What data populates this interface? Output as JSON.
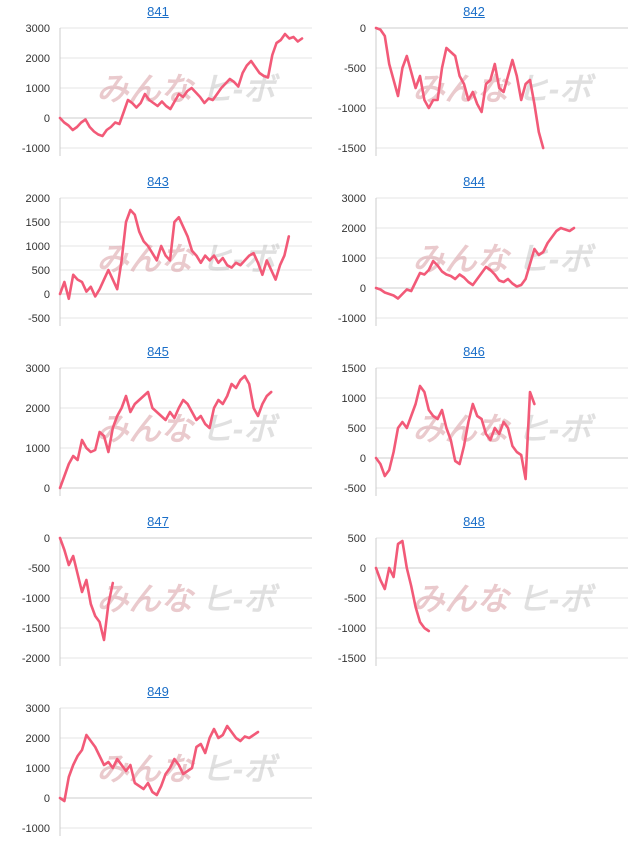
{
  "watermark": {
    "text_left": "みんな",
    "text_right": "ヒ-ボ"
  },
  "colors": {
    "line": "#f25a78",
    "link": "#1a6ec8"
  },
  "chart_data": [
    {
      "type": "line",
      "title": "841",
      "yticks": [
        3000,
        2000,
        1000,
        0,
        -1000
      ],
      "ylim": [
        -1000,
        3000
      ],
      "values": [
        0,
        -150,
        -250,
        -400,
        -300,
        -150,
        -50,
        -300,
        -450,
        -550,
        -600,
        -400,
        -300,
        -150,
        -200,
        200,
        600,
        500,
        350,
        500,
        800,
        600,
        500,
        400,
        550,
        400,
        300,
        550,
        800,
        700,
        900,
        1000,
        850,
        700,
        500,
        650,
        600,
        800,
        1000,
        1150,
        1300,
        1200,
        1050,
        1500,
        1750,
        1900,
        1700,
        1500,
        1400,
        1350,
        2100,
        2500,
        2600,
        2800,
        2650,
        2700,
        2550,
        2650
      ]
    },
    {
      "type": "line",
      "title": "842",
      "yticks": [
        0,
        -500,
        -1000,
        -1500
      ],
      "ylim": [
        -1500,
        0
      ],
      "values": [
        0,
        -20,
        -100,
        -450,
        -650,
        -850,
        -500,
        -350,
        -550,
        -750,
        -600,
        -900,
        -1000,
        -900,
        -900,
        -500,
        -250,
        -300,
        -350,
        -600,
        -700,
        -900,
        -800,
        -950,
        -1050,
        -700,
        -650,
        -450,
        -750,
        -800,
        -600,
        -400,
        -600,
        -900,
        -700,
        -650,
        -950,
        -1300,
        -1500
      ]
    },
    {
      "type": "line",
      "title": "843",
      "yticks": [
        2000,
        1500,
        1000,
        500,
        0,
        -500
      ],
      "ylim": [
        -500,
        2000
      ],
      "values": [
        0,
        250,
        -100,
        400,
        300,
        250,
        50,
        150,
        -50,
        100,
        300,
        500,
        300,
        100,
        700,
        1500,
        1750,
        1650,
        1300,
        1100,
        1000,
        850,
        700,
        1000,
        800,
        700,
        1500,
        1600,
        1400,
        1200,
        900,
        800,
        650,
        800,
        700,
        800,
        650,
        750,
        600,
        550,
        650,
        600,
        700,
        800,
        850,
        650,
        400,
        700,
        500,
        300,
        600,
        800,
        1200
      ]
    },
    {
      "type": "line",
      "title": "844",
      "yticks": [
        3000,
        2000,
        1000,
        0,
        -1000
      ],
      "ylim": [
        -1000,
        3000
      ],
      "values": [
        0,
        -50,
        -150,
        -200,
        -250,
        -350,
        -200,
        -50,
        -100,
        200,
        500,
        450,
        600,
        900,
        750,
        550,
        450,
        400,
        300,
        450,
        350,
        200,
        100,
        300,
        500,
        700,
        600,
        450,
        250,
        200,
        300,
        150,
        50,
        100,
        300,
        800,
        1300,
        1100,
        1200,
        1500,
        1700,
        1900,
        2000,
        1950,
        1900,
        2000
      ]
    },
    {
      "type": "line",
      "title": "845",
      "yticks": [
        3000,
        2000,
        1000,
        0
      ],
      "ylim": [
        0,
        3000
      ],
      "values": [
        0,
        300,
        600,
        800,
        700,
        1200,
        1000,
        900,
        950,
        1400,
        1300,
        900,
        1500,
        1800,
        2000,
        2300,
        1900,
        2100,
        2200,
        2300,
        2400,
        2000,
        1900,
        1800,
        1700,
        1900,
        1750,
        2000,
        2200,
        2100,
        1900,
        1700,
        1800,
        1600,
        1500,
        2000,
        2200,
        2100,
        2300,
        2600,
        2500,
        2700,
        2800,
        2600,
        2000,
        1800,
        2100,
        2300,
        2400
      ]
    },
    {
      "type": "line",
      "title": "846",
      "yticks": [
        1500,
        1000,
        500,
        0,
        -500
      ],
      "ylim": [
        -500,
        1500
      ],
      "values": [
        0,
        -100,
        -300,
        -200,
        100,
        500,
        600,
        500,
        700,
        900,
        1200,
        1100,
        800,
        700,
        650,
        800,
        500,
        300,
        -50,
        -100,
        200,
        600,
        900,
        700,
        650,
        400,
        300,
        500,
        400,
        600,
        500,
        200,
        100,
        50,
        -350,
        1100,
        900
      ]
    },
    {
      "type": "line",
      "title": "847",
      "yticks": [
        0,
        -500,
        -1000,
        -1500,
        -2000
      ],
      "ylim": [
        -2000,
        0
      ],
      "values": [
        0,
        -200,
        -450,
        -300,
        -600,
        -900,
        -700,
        -1100,
        -1300,
        -1400,
        -1700,
        -1100,
        -750
      ]
    },
    {
      "type": "line",
      "title": "848",
      "yticks": [
        500,
        0,
        -500,
        -1000,
        -1500
      ],
      "ylim": [
        -1500,
        500
      ],
      "values": [
        0,
        -200,
        -350,
        0,
        -150,
        400,
        450,
        0,
        -300,
        -650,
        -900,
        -1000,
        -1050
      ]
    },
    {
      "type": "line",
      "title": "849",
      "yticks": [
        3000,
        2000,
        1000,
        0,
        -1000
      ],
      "ylim": [
        -1000,
        3000
      ],
      "values": [
        0,
        -100,
        700,
        1100,
        1400,
        1600,
        2100,
        1900,
        1700,
        1400,
        1100,
        1200,
        1000,
        1300,
        1100,
        900,
        1100,
        500,
        400,
        300,
        500,
        200,
        100,
        400,
        800,
        1000,
        1300,
        1100,
        800,
        900,
        1000,
        1700,
        1800,
        1500,
        2000,
        2300,
        2000,
        2100,
        2400,
        2200,
        2000,
        1900,
        2050,
        2000,
        2100,
        2200
      ]
    }
  ]
}
